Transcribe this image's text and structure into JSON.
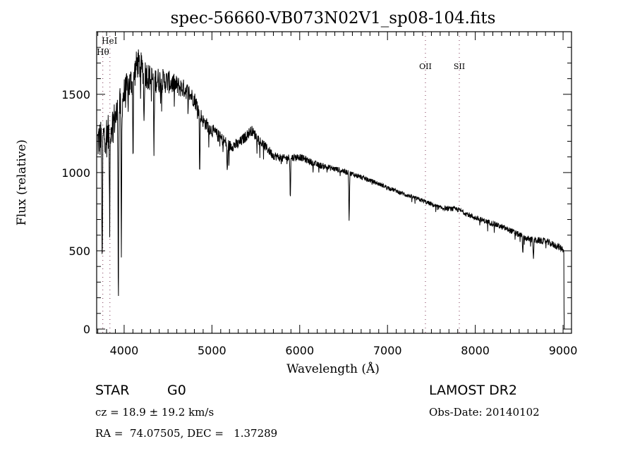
{
  "chart_data": {
    "type": "line",
    "title": "spec-56660-VB073N02V1_sp08-104.fits",
    "xlabel": "Wavelength (Å)",
    "ylabel": "Flux (relative)",
    "xlim": [
      3687,
      9096
    ],
    "ylim": [
      -27,
      1900
    ],
    "xticks": [
      4000,
      5000,
      6000,
      7000,
      8000,
      9000
    ],
    "yticks": [
      0,
      500,
      1000,
      1500
    ],
    "grid": false,
    "continuum": [
      [
        3700,
        1200
      ],
      [
        3800,
        1250
      ],
      [
        3900,
        1350
      ],
      [
        4000,
        1500
      ],
      [
        4100,
        1600
      ],
      [
        4150,
        1700
      ],
      [
        4300,
        1600
      ],
      [
        4500,
        1580
      ],
      [
        4700,
        1530
      ],
      [
        4800,
        1470
      ],
      [
        4900,
        1330
      ],
      [
        5000,
        1270
      ],
      [
        5200,
        1170
      ],
      [
        5300,
        1180
      ],
      [
        5450,
        1270
      ],
      [
        5550,
        1200
      ],
      [
        5700,
        1110
      ],
      [
        5800,
        1090
      ],
      [
        6000,
        1100
      ],
      [
        6200,
        1050
      ],
      [
        6500,
        1010
      ],
      [
        6800,
        950
      ],
      [
        7000,
        905
      ],
      [
        7200,
        860
      ],
      [
        7400,
        820
      ],
      [
        7600,
        775
      ],
      [
        7800,
        765
      ],
      [
        8000,
        710
      ],
      [
        8200,
        675
      ],
      [
        8400,
        630
      ],
      [
        8600,
        575
      ],
      [
        8800,
        560
      ],
      [
        8950,
        525
      ],
      [
        9000,
        510
      ],
      [
        9008,
        500
      ],
      [
        9012,
        0
      ]
    ],
    "absorption_lines": [
      {
        "wavelength": 3750,
        "depth": 900
      },
      {
        "wavelength": 3835,
        "depth": 650
      },
      {
        "wavelength": 3934,
        "depth": 1150
      },
      {
        "wavelength": 3968,
        "depth": 1000
      },
      {
        "wavelength": 4102,
        "depth": 500
      },
      {
        "wavelength": 4227,
        "depth": 350
      },
      {
        "wavelength": 4340,
        "depth": 500
      },
      {
        "wavelength": 4861,
        "depth": 400
      },
      {
        "wavelength": 5175,
        "depth": 200
      },
      {
        "wavelength": 5893,
        "depth": 250
      },
      {
        "wavelength": 6563,
        "depth": 310
      },
      {
        "wavelength": 8542,
        "depth": 110
      },
      {
        "wavelength": 8662,
        "depth": 130
      }
    ],
    "noise_amplitude": [
      [
        3700,
        260
      ],
      [
        4300,
        180
      ],
      [
        4900,
        90
      ],
      [
        6000,
        45
      ],
      [
        7000,
        25
      ],
      [
        8200,
        35
      ],
      [
        9000,
        45
      ]
    ],
    "line_markers": [
      {
        "label": "Hθ",
        "wavelength": 3757
      },
      {
        "label": "HeI",
        "wavelength": 3838
      },
      {
        "label": "OII",
        "wavelength": 7432
      },
      {
        "label": "SII",
        "wavelength": 7818
      }
    ]
  },
  "info": {
    "object_class": "STAR",
    "subclass": "G0",
    "redshift": "cz = 18.9 ± 19.2 km/s",
    "coords": "RA =  74.07505, DEC =   1.37289",
    "survey": "LAMOST DR2",
    "obs_date": "Obs-Date: 20140102"
  }
}
